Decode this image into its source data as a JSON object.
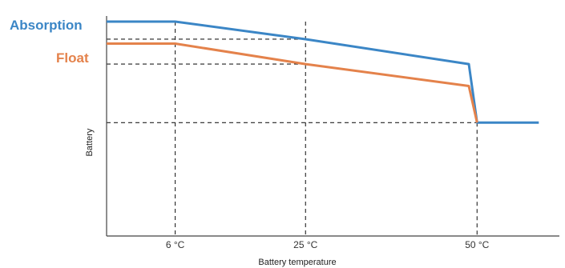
{
  "chart_data": {
    "type": "line",
    "xlabel": "Battery temperature",
    "ylabel": "Battery",
    "x_ticks": [
      "6 °C",
      "25 °C",
      "50 °C"
    ],
    "x_tick_values": [
      6,
      25,
      50
    ],
    "xlim": [
      -4,
      62
    ],
    "ylim": [
      0,
      100
    ],
    "grid": false,
    "series": [
      {
        "name": "Absorption",
        "color": "#3b86c6",
        "x": [
          -4,
          6,
          25,
          48.8,
          50,
          59
        ],
        "y": [
          100,
          100,
          88,
          71,
          31,
          31
        ]
      },
      {
        "name": "Float",
        "color": "#e4824b",
        "x": [
          -4,
          6,
          25,
          48.8,
          50
        ],
        "y": [
          85,
          85,
          71,
          56,
          31
        ]
      }
    ],
    "reference_lines": [
      {
        "axis": "x",
        "value": 6,
        "y_from": 0,
        "y_to": 100
      },
      {
        "axis": "x",
        "value": 25,
        "y_from": 0,
        "y_to": 100
      },
      {
        "axis": "x",
        "value": 50,
        "y_from": 0,
        "y_to": 31
      },
      {
        "axis": "y",
        "value": 88,
        "x_from": -4,
        "x_to": 25
      },
      {
        "axis": "y",
        "value": 71,
        "x_from": -4,
        "x_to": 25
      },
      {
        "axis": "y",
        "value": 31,
        "x_from": -4,
        "x_to": 50
      }
    ]
  }
}
